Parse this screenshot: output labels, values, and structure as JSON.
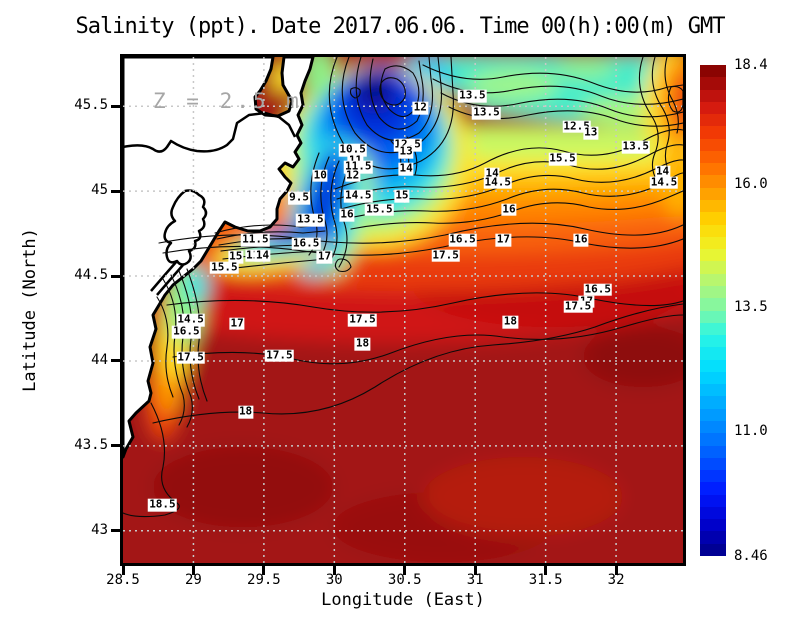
{
  "title": "Salinity (ppt). Date 2017.06.06. Time 00(h):00(m) GMT",
  "annotation": {
    "depth_label": "Z = 2.5 m"
  },
  "axes": {
    "x": {
      "label": "Longitude (East)",
      "range": [
        28.5,
        32.475
      ],
      "ticks": [
        {
          "label": "28.5",
          "value": 28.5
        },
        {
          "label": "29",
          "value": 29
        },
        {
          "label": "29.5",
          "value": 29.5
        },
        {
          "label": "30",
          "value": 30
        },
        {
          "label": "30.5",
          "value": 30.5
        },
        {
          "label": "31",
          "value": 31
        },
        {
          "label": "31.5",
          "value": 31.5
        },
        {
          "label": "32",
          "value": 32
        }
      ]
    },
    "y": {
      "label": "Latitude (North)",
      "range": [
        42.81,
        45.79
      ],
      "ticks": [
        {
          "label": "45.5",
          "value": 45.5
        },
        {
          "label": "45",
          "value": 45
        },
        {
          "label": "44.5",
          "value": 44.5
        },
        {
          "label": "44",
          "value": 44
        },
        {
          "label": "43.5",
          "value": 43.5
        },
        {
          "label": "43",
          "value": 43
        }
      ]
    }
  },
  "colorbar": {
    "min": 8.46,
    "max": 18.4,
    "tick_labels": [
      {
        "label": "18.4",
        "value": 18.4
      },
      {
        "label": "16.0",
        "value": 16.0
      },
      {
        "label": "13.5",
        "value": 13.5
      },
      {
        "label": "11.0",
        "value": 11.0
      },
      {
        "label": "8.46",
        "value": 8.46
      }
    ],
    "stops": [
      {
        "p": 0.0,
        "c": "#000086"
      },
      {
        "p": 0.06,
        "c": "#0000c8"
      },
      {
        "p": 0.13,
        "c": "#0018ff"
      },
      {
        "p": 0.22,
        "c": "#0068ff"
      },
      {
        "p": 0.3,
        "c": "#00a4ff"
      },
      {
        "p": 0.38,
        "c": "#00dcff"
      },
      {
        "p": 0.45,
        "c": "#2cf5e4"
      },
      {
        "p": 0.5,
        "c": "#7cf7a8"
      },
      {
        "p": 0.56,
        "c": "#b6f671"
      },
      {
        "p": 0.62,
        "c": "#eef52b"
      },
      {
        "p": 0.68,
        "c": "#ffd400"
      },
      {
        "p": 0.74,
        "c": "#ffa000"
      },
      {
        "p": 0.8,
        "c": "#ff6a00"
      },
      {
        "p": 0.86,
        "c": "#f23a05"
      },
      {
        "p": 0.92,
        "c": "#d11710"
      },
      {
        "p": 1.0,
        "c": "#7e0000"
      }
    ]
  },
  "chart_data": {
    "type": "heatmap",
    "variable": "Salinity (ppt)",
    "date": "2017.06.06",
    "time": "00(h):00(m) GMT",
    "depth": "Z = 2.5 m",
    "xlabel": "Longitude (East)",
    "ylabel": "Latitude (North)",
    "xlim": [
      28.5,
      32.475
    ],
    "ylim": [
      42.81,
      45.79
    ],
    "colorbar_range": [
      8.46,
      18.4
    ],
    "contour_interval": 0.5,
    "grid": "dotted, every 0.5 degree",
    "contour_labels": [
      {
        "value": "10.5",
        "lon": 30.13,
        "lat": 45.24
      },
      {
        "value": "11",
        "lon": 30.15,
        "lat": 45.18
      },
      {
        "value": "11.5",
        "lon": 30.17,
        "lat": 45.14
      },
      {
        "value": "12",
        "lon": 30.13,
        "lat": 45.09
      },
      {
        "value": "12",
        "lon": 30.61,
        "lat": 45.49
      },
      {
        "value": "13.5",
        "lon": 30.98,
        "lat": 45.56
      },
      {
        "value": "13.5",
        "lon": 31.08,
        "lat": 45.46
      },
      {
        "value": "12.5",
        "lon": 31.72,
        "lat": 45.38
      },
      {
        "value": "13",
        "lon": 31.82,
        "lat": 45.34
      },
      {
        "value": "13.5",
        "lon": 32.14,
        "lat": 45.26
      },
      {
        "value": "12.5",
        "lon": 30.52,
        "lat": 45.27
      },
      {
        "value": "13",
        "lon": 30.51,
        "lat": 45.23
      },
      {
        "value": "14",
        "lon": 30.51,
        "lat": 45.13
      },
      {
        "value": "14",
        "lon": 31.12,
        "lat": 45.1
      },
      {
        "value": "14.5",
        "lon": 31.16,
        "lat": 45.05
      },
      {
        "value": "14",
        "lon": 32.33,
        "lat": 45.11
      },
      {
        "value": "14.5",
        "lon": 32.34,
        "lat": 45.05
      },
      {
        "value": "15.5",
        "lon": 31.62,
        "lat": 45.19
      },
      {
        "value": "16",
        "lon": 31.24,
        "lat": 44.89
      },
      {
        "value": "15",
        "lon": 30.48,
        "lat": 44.97
      },
      {
        "value": "14.5",
        "lon": 30.17,
        "lat": 44.97
      },
      {
        "value": "15.5",
        "lon": 30.32,
        "lat": 44.89
      },
      {
        "value": "16",
        "lon": 30.09,
        "lat": 44.86
      },
      {
        "value": "13.5",
        "lon": 29.83,
        "lat": 44.83
      },
      {
        "value": "9.5",
        "lon": 29.75,
        "lat": 44.96
      },
      {
        "value": "10",
        "lon": 29.9,
        "lat": 45.09
      },
      {
        "value": "16.5",
        "lon": 29.8,
        "lat": 44.69
      },
      {
        "value": "17",
        "lon": 29.93,
        "lat": 44.61
      },
      {
        "value": "15",
        "lon": 29.3,
        "lat": 44.61
      },
      {
        "value": "11",
        "lon": 29.42,
        "lat": 44.62
      },
      {
        "value": "14",
        "lon": 29.49,
        "lat": 44.62
      },
      {
        "value": "11.5",
        "lon": 29.44,
        "lat": 44.71
      },
      {
        "value": "15.5",
        "lon": 29.22,
        "lat": 44.55
      },
      {
        "value": "14.5",
        "lon": 28.98,
        "lat": 44.24
      },
      {
        "value": "16.5",
        "lon": 28.95,
        "lat": 44.17
      },
      {
        "value": "17",
        "lon": 29.31,
        "lat": 44.22
      },
      {
        "value": "17.5",
        "lon": 28.98,
        "lat": 44.02
      },
      {
        "value": "17.5",
        "lon": 29.61,
        "lat": 44.03
      },
      {
        "value": "18",
        "lon": 29.37,
        "lat": 43.7
      },
      {
        "value": "17.5",
        "lon": 30.2,
        "lat": 44.24
      },
      {
        "value": "18",
        "lon": 30.2,
        "lat": 44.1
      },
      {
        "value": "16.5",
        "lon": 30.91,
        "lat": 44.71
      },
      {
        "value": "17",
        "lon": 31.2,
        "lat": 44.71
      },
      {
        "value": "16",
        "lon": 31.75,
        "lat": 44.71
      },
      {
        "value": "17.5",
        "lon": 30.79,
        "lat": 44.62
      },
      {
        "value": "16.5",
        "lon": 31.87,
        "lat": 44.42
      },
      {
        "value": "17",
        "lon": 31.79,
        "lat": 44.35
      },
      {
        "value": "17.5",
        "lon": 31.73,
        "lat": 44.32
      },
      {
        "value": "18",
        "lon": 31.25,
        "lat": 44.23
      },
      {
        "value": "18.5",
        "lon": 28.78,
        "lat": 43.15
      }
    ]
  }
}
